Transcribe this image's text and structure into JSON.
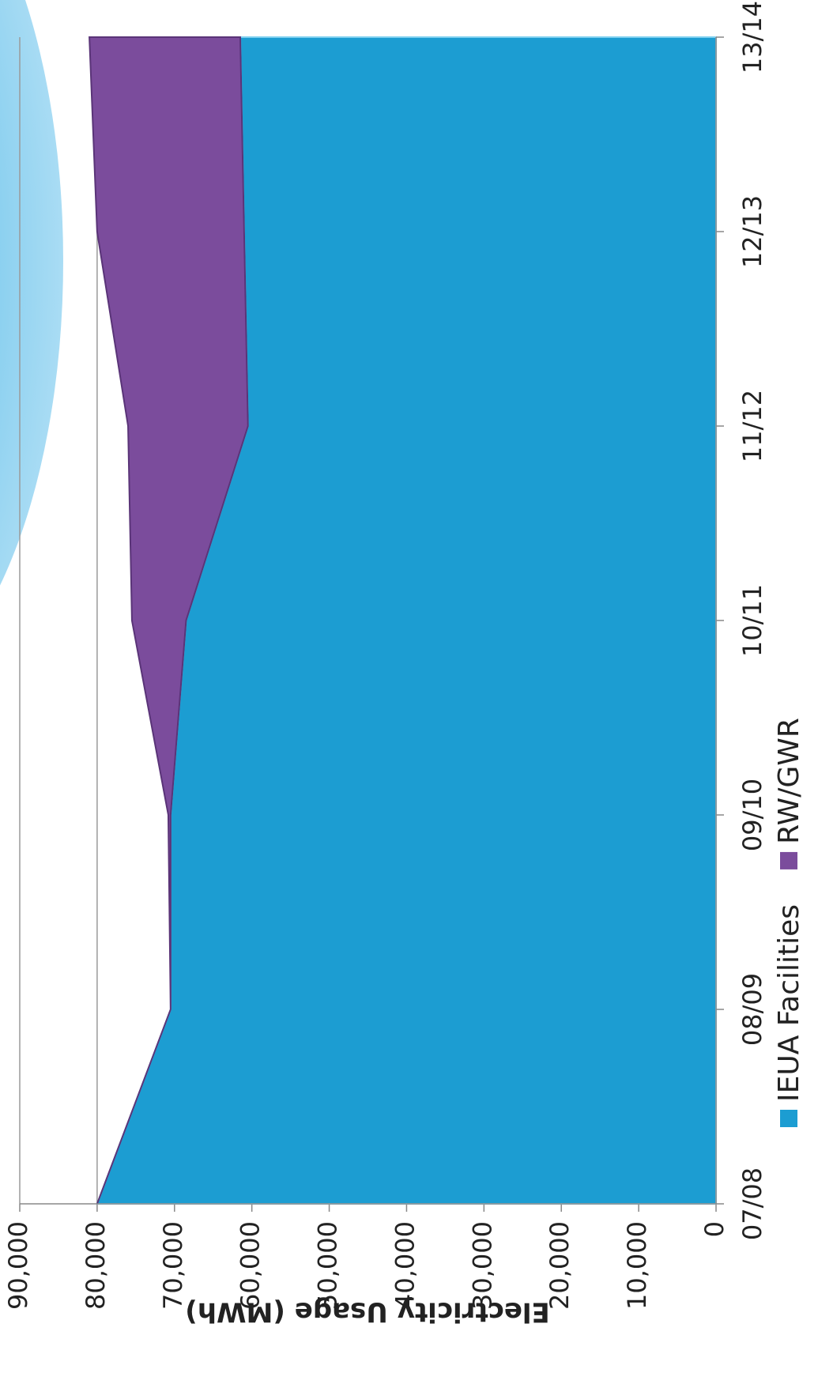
{
  "chart_data": {
    "type": "area",
    "stacked": true,
    "y_label": "Electricity Usage (MWh)",
    "categories": [
      "07/08",
      "08/09",
      "09/10",
      "10/11",
      "11/12",
      "12/13",
      "13/14"
    ],
    "series": [
      {
        "name": "IEUA Facilities",
        "color": "#1c9dd2",
        "values": [
          80000,
          70500,
          70500,
          68500,
          60500,
          61000,
          61500
        ]
      },
      {
        "name": "RW/GWR",
        "color": "#7b4c9c",
        "values": [
          0,
          0,
          300,
          7000,
          15500,
          19000,
          19500
        ]
      }
    ],
    "ylim": [
      0,
      90000
    ],
    "yticks": [
      0,
      {
        "value": 10000,
        "label": "10,000"
      },
      {
        "value": 20000,
        "label": "20,000"
      },
      {
        "value": 30000,
        "label": "30,000"
      },
      {
        "value": 40000,
        "label": "40,000"
      },
      {
        "value": 50000,
        "label": "50,000"
      },
      {
        "value": 60000,
        "label": "60,000"
      },
      {
        "value": 70000,
        "label": "70,000"
      },
      {
        "value": 80000,
        "label": "80,000"
      },
      {
        "value": 90000,
        "label": "90,000"
      }
    ],
    "grid": true,
    "legend": "bottom"
  }
}
